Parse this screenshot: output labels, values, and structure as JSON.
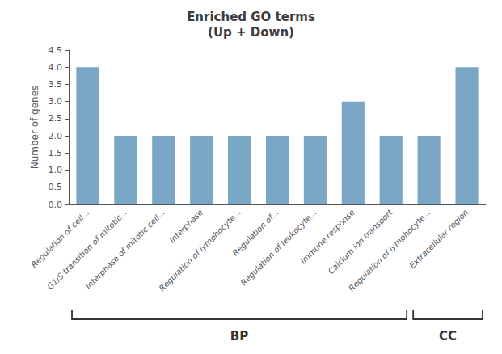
{
  "chart_data": {
    "type": "bar",
    "title": "Enriched GO terms\n(Up + Down)",
    "ylabel": "Number of genes",
    "categories": [
      "Regulation of cell...",
      "G1/S transition of mitotic...",
      "Interphase of mitotic cell...",
      "Interphase",
      "Regulation of lymphocyte...",
      "Regulation of...",
      "Regulation of leukocyte...",
      "Immune response",
      "Calcium ion transport",
      "Regulation of lymphocyte...",
      "Extracellular region"
    ],
    "values": [
      4,
      2,
      2,
      2,
      2,
      2,
      2,
      3,
      2,
      2,
      4
    ],
    "color": "#7BA7C7",
    "ylim": [
      0,
      4.5
    ],
    "yticks": [
      {
        "value": 0,
        "label": "0.0"
      },
      0.5,
      {
        "value": 1,
        "label": "1.0"
      },
      1.5,
      {
        "value": 2,
        "label": "2.0"
      },
      2.5,
      {
        "value": 3,
        "label": "3.0"
      },
      3.5,
      {
        "value": 4,
        "label": "4.0"
      },
      4.5
    ],
    "grid": false,
    "annotations": [
      {
        "text": "BP",
        "bars": 9
      },
      {
        "text": "CC",
        "bars": 2
      }
    ]
  }
}
